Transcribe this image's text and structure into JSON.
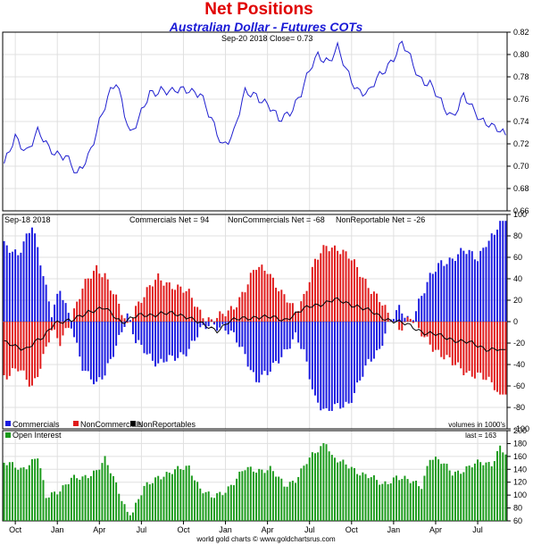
{
  "header": {
    "title": "Net Positions",
    "subtitle": "Australian Dollar - Futures COTs"
  },
  "colors": {
    "title": "#e00000",
    "subtitle": "#1a1ad6",
    "price_line": "#2020d0",
    "commercials": "#1a1ae0",
    "noncommercials": "#e01a1a",
    "nonreportables": "#000000",
    "open_interest": "#1a9a1a",
    "grid": "#e0e0e0",
    "frame": "#000000"
  },
  "panels": {
    "price": {
      "caption": "Sep-20  2018   Close= 0.73"
    },
    "net": {
      "date_caption": "Sep-18  2018",
      "commercials_caption": "Commercials Net = 94",
      "noncommercials_caption": "NonCommercials Net = -68",
      "nonreportables_caption": "NonReportable Net = -26",
      "legend": [
        "Commercials",
        "NonCommercials",
        "NonReportables"
      ],
      "units_caption": "volumes in 1000's"
    },
    "oi": {
      "legend": "Open Interest",
      "last_caption": "last = 163"
    }
  },
  "footer": {
    "credit": "world gold charts © www.goldchartsrus.com"
  },
  "chart_data": [
    {
      "type": "line",
      "title": "Australian Dollar - Futures COTs",
      "series_name": "Close",
      "x_ticks": [
        "Oct",
        "Jan",
        "Apr",
        "Jul",
        "Oct",
        "Jan",
        "Apr",
        "Jul",
        "Oct",
        "Jan",
        "Apr",
        "Jul"
      ],
      "ylim": [
        0.66,
        0.82
      ],
      "y_ticks": [
        "0.82",
        "0.80",
        "0.78",
        "0.76",
        "0.74",
        "0.72",
        "0.70",
        "0.68",
        "0.66"
      ],
      "anchors": [
        [
          0,
          0.7
        ],
        [
          4,
          0.725
        ],
        [
          8,
          0.715
        ],
        [
          12,
          0.73
        ],
        [
          16,
          0.715
        ],
        [
          22,
          0.71
        ],
        [
          26,
          0.69
        ],
        [
          30,
          0.71
        ],
        [
          34,
          0.74
        ],
        [
          38,
          0.765
        ],
        [
          40,
          0.775
        ],
        [
          42,
          0.76
        ],
        [
          45,
          0.73
        ],
        [
          48,
          0.74
        ],
        [
          52,
          0.765
        ],
        [
          56,
          0.77
        ],
        [
          60,
          0.765
        ],
        [
          66,
          0.77
        ],
        [
          70,
          0.765
        ],
        [
          73,
          0.745
        ],
        [
          76,
          0.73
        ],
        [
          78,
          0.72
        ],
        [
          82,
          0.73
        ],
        [
          86,
          0.765
        ],
        [
          90,
          0.765
        ],
        [
          94,
          0.755
        ],
        [
          98,
          0.74
        ],
        [
          102,
          0.75
        ],
        [
          106,
          0.765
        ],
        [
          110,
          0.79
        ],
        [
          112,
          0.8
        ],
        [
          116,
          0.795
        ],
        [
          119,
          0.805
        ],
        [
          122,
          0.785
        ],
        [
          126,
          0.77
        ],
        [
          130,
          0.765
        ],
        [
          134,
          0.78
        ],
        [
          138,
          0.795
        ],
        [
          142,
          0.81
        ],
        [
          144,
          0.8
        ],
        [
          148,
          0.78
        ],
        [
          152,
          0.775
        ],
        [
          154,
          0.765
        ],
        [
          157,
          0.75
        ],
        [
          160,
          0.745
        ],
        [
          164,
          0.765
        ],
        [
          167,
          0.75
        ],
        [
          170,
          0.74
        ],
        [
          173,
          0.74
        ],
        [
          176,
          0.735
        ],
        [
          179,
          0.725
        ],
        [
          181,
          0.715
        ],
        [
          182,
          0.72
        ],
        [
          183,
          0.73
        ]
      ]
    },
    {
      "type": "bar",
      "title": "Net Positions",
      "ylim": [
        -100,
        100
      ],
      "y_ticks": [
        "100",
        "80",
        "60",
        "40",
        "20",
        "0",
        "-20",
        "-40",
        "-60",
        "-80",
        "-100"
      ],
      "series": [
        {
          "name": "Commercials",
          "anchors": [
            [
              0,
              70
            ],
            [
              5,
              65
            ],
            [
              10,
              88
            ],
            [
              13,
              55
            ],
            [
              17,
              10
            ],
            [
              20,
              30
            ],
            [
              24,
              -5
            ],
            [
              28,
              -40
            ],
            [
              33,
              -60
            ],
            [
              36,
              -50
            ],
            [
              40,
              -20
            ],
            [
              44,
              5
            ],
            [
              47,
              -20
            ],
            [
              50,
              -25
            ],
            [
              55,
              -40
            ],
            [
              60,
              -35
            ],
            [
              66,
              -25
            ],
            [
              70,
              -10
            ],
            [
              74,
              0
            ],
            [
              78,
              -5
            ],
            [
              82,
              -15
            ],
            [
              86,
              -30
            ],
            [
              90,
              -55
            ],
            [
              94,
              -50
            ],
            [
              99,
              -30
            ],
            [
              104,
              -15
            ],
            [
              107,
              -30
            ],
            [
              111,
              -70
            ],
            [
              115,
              -85
            ],
            [
              119,
              -80
            ],
            [
              123,
              -75
            ],
            [
              127,
              -55
            ],
            [
              130,
              -40
            ],
            [
              134,
              -25
            ],
            [
              137,
              0
            ],
            [
              141,
              10
            ],
            [
              145,
              0
            ],
            [
              148,
              20
            ],
            [
              152,
              40
            ],
            [
              156,
              55
            ],
            [
              160,
              60
            ],
            [
              164,
              65
            ],
            [
              169,
              60
            ],
            [
              172,
              75
            ],
            [
              175,
              80
            ],
            [
              177,
              94
            ]
          ]
        },
        {
          "name": "NonCommercials",
          "anchors": [
            [
              0,
              -50
            ],
            [
              5,
              -45
            ],
            [
              10,
              -60
            ],
            [
              13,
              -40
            ],
            [
              17,
              -10
            ],
            [
              20,
              -20
            ],
            [
              24,
              5
            ],
            [
              28,
              30
            ],
            [
              33,
              50
            ],
            [
              36,
              45
            ],
            [
              40,
              20
            ],
            [
              44,
              -5
            ],
            [
              47,
              15
            ],
            [
              50,
              25
            ],
            [
              55,
              40
            ],
            [
              60,
              35
            ],
            [
              66,
              25
            ],
            [
              70,
              10
            ],
            [
              74,
              0
            ],
            [
              78,
              5
            ],
            [
              82,
              15
            ],
            [
              86,
              30
            ],
            [
              90,
              50
            ],
            [
              94,
              50
            ],
            [
              99,
              25
            ],
            [
              104,
              10
            ],
            [
              107,
              25
            ],
            [
              111,
              55
            ],
            [
              115,
              70
            ],
            [
              119,
              70
            ],
            [
              123,
              60
            ],
            [
              127,
              45
            ],
            [
              130,
              35
            ],
            [
              134,
              20
            ],
            [
              137,
              5
            ],
            [
              141,
              -5
            ],
            [
              145,
              5
            ],
            [
              148,
              -10
            ],
            [
              152,
              -20
            ],
            [
              156,
              -30
            ],
            [
              160,
              -40
            ],
            [
              164,
              -45
            ],
            [
              169,
              -50
            ],
            [
              172,
              -55
            ],
            [
              175,
              -60
            ],
            [
              177,
              -68
            ]
          ]
        },
        {
          "name": "NonReportables",
          "anchors": [
            [
              0,
              -20
            ],
            [
              8,
              -25
            ],
            [
              14,
              -15
            ],
            [
              18,
              0
            ],
            [
              24,
              0
            ],
            [
              30,
              10
            ],
            [
              36,
              12
            ],
            [
              42,
              0
            ],
            [
              48,
              5
            ],
            [
              56,
              8
            ],
            [
              66,
              5
            ],
            [
              72,
              -5
            ],
            [
              76,
              -8
            ],
            [
              80,
              0
            ],
            [
              90,
              5
            ],
            [
              100,
              2
            ],
            [
              110,
              15
            ],
            [
              118,
              20
            ],
            [
              126,
              15
            ],
            [
              134,
              5
            ],
            [
              140,
              0
            ],
            [
              146,
              -5
            ],
            [
              150,
              -10
            ],
            [
              158,
              -15
            ],
            [
              166,
              -20
            ],
            [
              172,
              -25
            ],
            [
              177,
              -26
            ]
          ]
        }
      ]
    },
    {
      "type": "bar",
      "title": "Open Interest",
      "ylim": [
        60,
        200
      ],
      "y_ticks": [
        "200",
        "180",
        "160",
        "140",
        "120",
        "100",
        "80",
        "60"
      ],
      "last": 163,
      "anchors": [
        [
          0,
          150
        ],
        [
          6,
          140
        ],
        [
          12,
          160
        ],
        [
          15,
          95
        ],
        [
          20,
          110
        ],
        [
          24,
          125
        ],
        [
          28,
          125
        ],
        [
          33,
          140
        ],
        [
          36,
          155
        ],
        [
          40,
          115
        ],
        [
          44,
          75
        ],
        [
          46,
          75
        ],
        [
          50,
          110
        ],
        [
          55,
          130
        ],
        [
          60,
          135
        ],
        [
          66,
          145
        ],
        [
          70,
          110
        ],
        [
          74,
          95
        ],
        [
          78,
          105
        ],
        [
          82,
          120
        ],
        [
          86,
          140
        ],
        [
          90,
          140
        ],
        [
          95,
          140
        ],
        [
          100,
          115
        ],
        [
          104,
          125
        ],
        [
          108,
          150
        ],
        [
          112,
          170
        ],
        [
          115,
          185
        ],
        [
          117,
          160
        ],
        [
          120,
          150
        ],
        [
          125,
          140
        ],
        [
          130,
          130
        ],
        [
          135,
          115
        ],
        [
          140,
          130
        ],
        [
          145,
          120
        ],
        [
          149,
          115
        ],
        [
          152,
          160
        ],
        [
          156,
          150
        ],
        [
          160,
          135
        ],
        [
          164,
          140
        ],
        [
          170,
          150
        ],
        [
          174,
          150
        ],
        [
          177,
          175
        ],
        [
          179,
          163
        ]
      ]
    }
  ]
}
